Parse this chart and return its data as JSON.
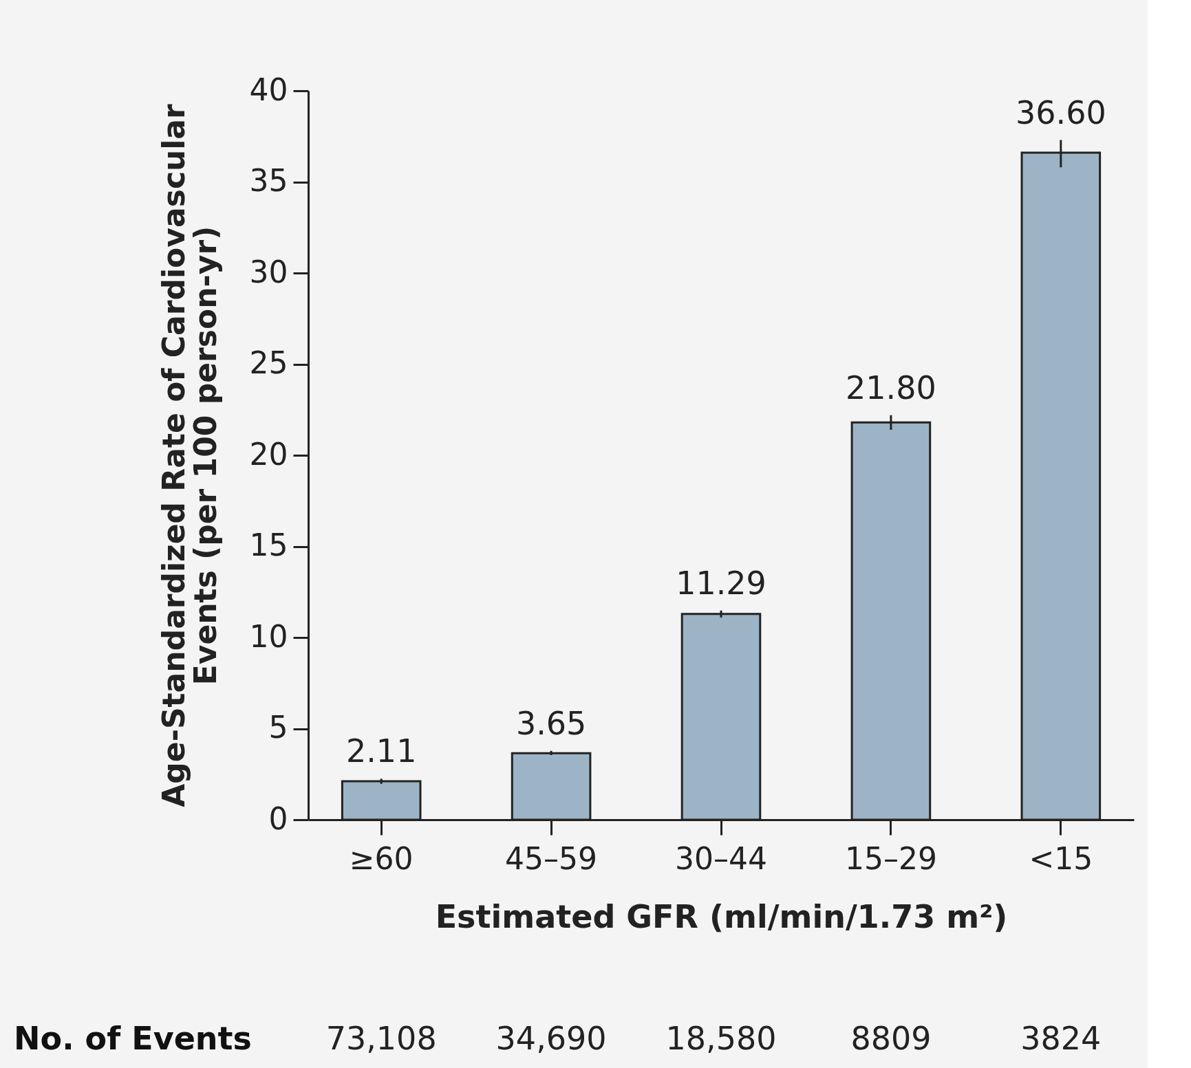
{
  "chart_data": {
    "type": "bar",
    "categories": [
      "≥60",
      "45–59",
      "30–44",
      "15–29",
      "<15"
    ],
    "values": [
      2.11,
      3.65,
      11.29,
      21.8,
      36.6
    ],
    "errors": [
      [
        1.97,
        2.25
      ],
      [
        3.55,
        3.78
      ],
      [
        11.1,
        11.48
      ],
      [
        21.4,
        22.2
      ],
      [
        35.8,
        37.3
      ]
    ],
    "color": "#9cb4c5",
    "value_labels": [
      "2.11",
      "3.65",
      "11.29",
      "21.80",
      "36.60"
    ],
    "xlabel": "Estimated GFR (ml/min/1.73 m²)",
    "ylabel": "Age-Standardized Rate of Cardiovascular\nEvents (per 100 person-yr)",
    "ylim": [
      0,
      40
    ],
    "yticks": [
      0,
      5,
      10,
      15,
      20,
      25,
      30,
      35,
      40
    ],
    "grid": false,
    "annotations": [
      "No. of Events",
      "73,108",
      "34,690",
      "18,580",
      "8809",
      "3824"
    ]
  }
}
